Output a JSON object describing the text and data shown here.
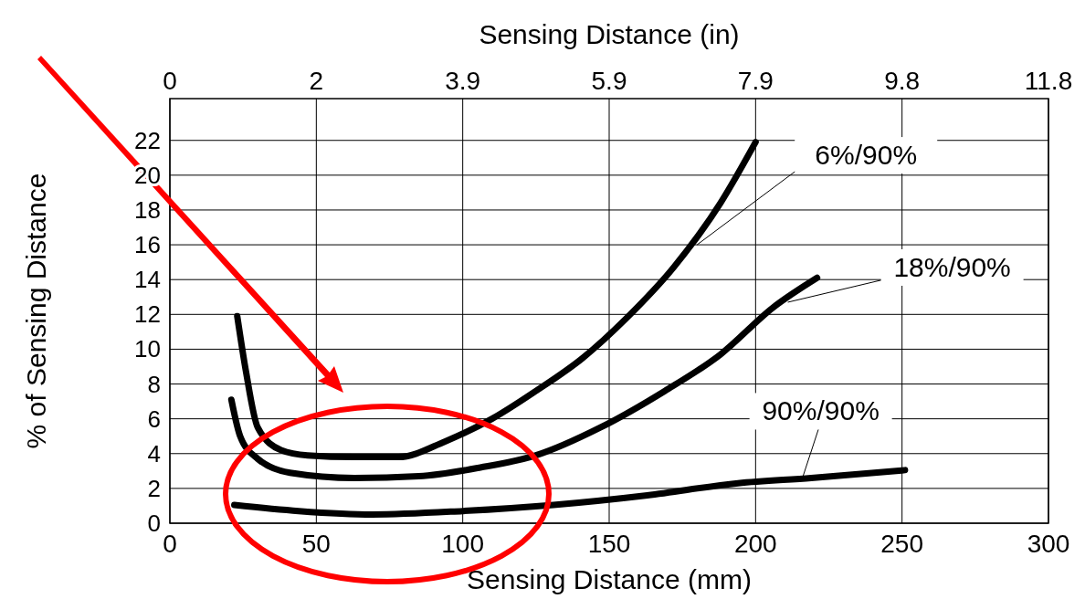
{
  "chart_data": {
    "type": "line",
    "xlabel": "Sensing Distance (mm)",
    "ylabel": "% of Sensing Distance",
    "x2label": "Sensing Distance (in)",
    "xlim": [
      0,
      300
    ],
    "xticks": [
      0,
      50,
      100,
      150,
      200,
      250,
      300
    ],
    "x2lim": [
      0,
      11.811
    ],
    "x2ticks": [
      0,
      {
        "value": 1.9685,
        "label": "2"
      },
      {
        "value": 3.937,
        "label": "3.9"
      },
      {
        "value": 5.9055,
        "label": "5.9"
      },
      {
        "value": 7.874,
        "label": "7.9"
      },
      {
        "value": 9.8425,
        "label": "9.8"
      },
      {
        "value": 11.811,
        "label": "11.8"
      }
    ],
    "ylim": [
      0,
      24.4
    ],
    "yticks": [
      0,
      2,
      4,
      6,
      8,
      10,
      12,
      14,
      16,
      18,
      20,
      22
    ],
    "grid": true,
    "line_style": "solid",
    "marker": "none",
    "series": [
      {
        "color": "#000000",
        "x": [
          23,
          26,
          30,
          38,
          47,
          63,
          78,
          94,
          110,
          125,
          141,
          156,
          172,
          188,
          200
        ],
        "values": [
          11.9,
          8.7,
          5.5,
          4.2,
          3.9,
          3.8,
          3.8,
          4.7,
          6.0,
          7.6,
          9.5,
          11.8,
          14.7,
          18.4,
          21.9
        ]
      },
      {
        "color": "#000000",
        "x": [
          21,
          24,
          30,
          41,
          63,
          85,
          106,
          125,
          147,
          169,
          188,
          206,
          221
        ],
        "values": [
          7.1,
          5.0,
          3.7,
          2.9,
          2.6,
          2.7,
          3.2,
          3.9,
          5.5,
          7.6,
          9.7,
          12.4,
          14.1
        ]
      },
      {
        "color": "#000000",
        "x": [
          22,
          44,
          69,
          100,
          131,
          163,
          194,
          219,
          251
        ],
        "values": [
          1.05,
          0.7,
          0.5,
          0.7,
          1.05,
          1.6,
          2.3,
          2.6,
          3.05
        ]
      }
    ],
    "annotations": [
      {
        "text": "6%/90%",
        "x": 180,
        "y": 16
      },
      {
        "text": "18%/90%",
        "x": 211,
        "y": 12.7
      },
      {
        "text": "90%/90%",
        "x": 216,
        "y": 2.6
      }
    ]
  }
}
